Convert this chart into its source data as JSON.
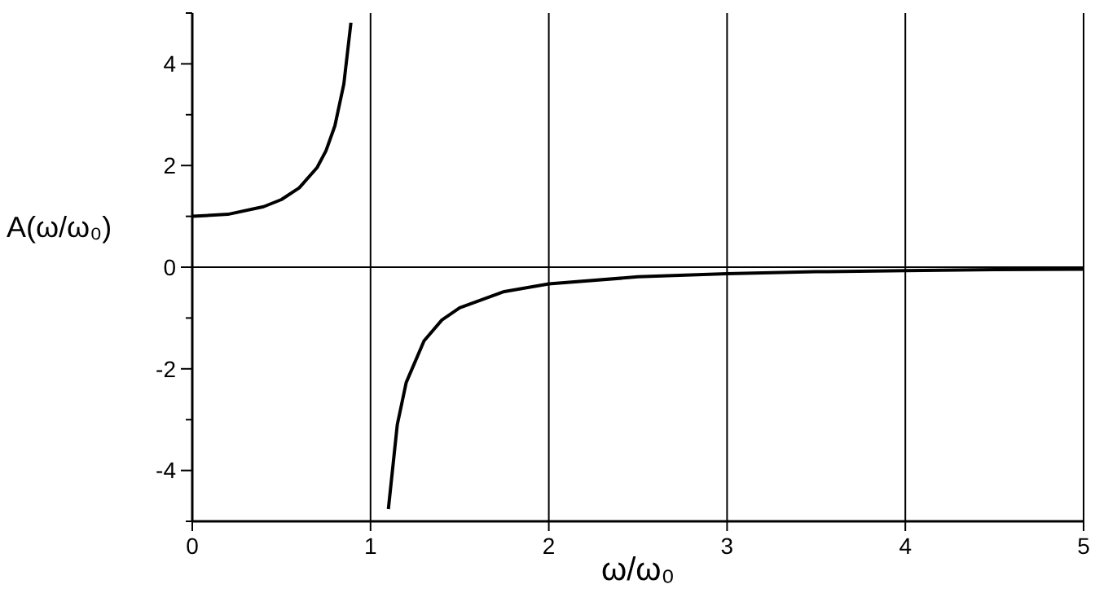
{
  "chart_data": {
    "type": "line",
    "xlabel": "ω/ω₀",
    "ylabel": "A(ω/ω₀)",
    "xlim": [
      0,
      5
    ],
    "ylim": [
      -5,
      5
    ],
    "xticks": [
      0,
      1,
      2,
      3,
      4,
      5
    ],
    "yticks": [
      {
        "value": -5,
        "label": null
      },
      -4,
      {
        "value": -3,
        "label": null
      },
      -2,
      {
        "value": -1,
        "label": null
      },
      0,
      {
        "value": 1,
        "label": null
      },
      2,
      {
        "value": 3,
        "label": null
      },
      4,
      {
        "value": 5,
        "label": null
      }
    ],
    "grid": "x",
    "marker": "none",
    "line_style": "solid",
    "ref_lines": [
      {
        "axis": "y",
        "value": 0,
        "color": "#000000"
      }
    ],
    "series": [
      {
        "color": "#000000",
        "x": [
          0,
          0.2,
          0.4,
          0.5,
          0.6,
          0.7,
          0.75,
          0.8,
          0.85,
          0.89
        ],
        "values": [
          1,
          1.04,
          1.19,
          1.33,
          1.56,
          1.96,
          2.29,
          2.78,
          3.6,
          4.81
        ]
      },
      {
        "color": "#000000",
        "x": [
          1.1,
          1.15,
          1.2,
          1.3,
          1.4,
          1.5,
          1.75,
          2,
          2.5,
          3,
          3.5,
          4,
          4.5,
          5
        ],
        "values": [
          -4.76,
          -3.1,
          -2.27,
          -1.45,
          -1.04,
          -0.8,
          -0.48,
          -0.33,
          -0.19,
          -0.13,
          -0.09,
          -0.07,
          -0.05,
          -0.04
        ]
      }
    ]
  }
}
